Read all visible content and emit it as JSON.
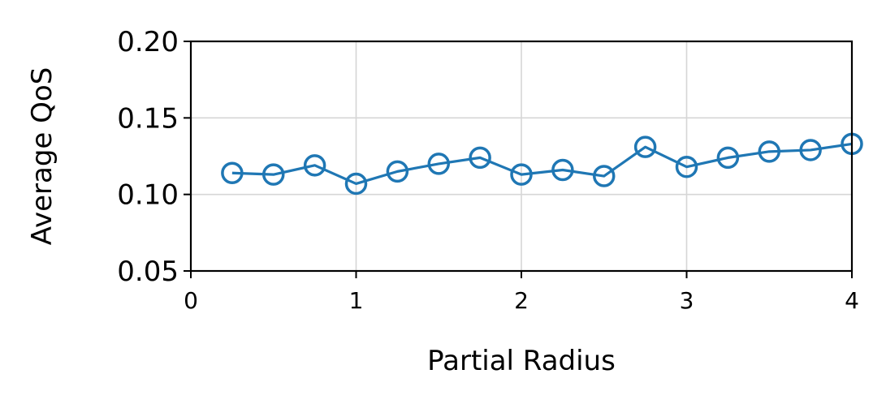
{
  "chart_data": {
    "type": "line",
    "xlabel": "Partial Radius",
    "ylabel": "Average QoS",
    "xlim": [
      0,
      4
    ],
    "ylim": [
      0.05,
      0.2
    ],
    "xticks": [
      0,
      1,
      2,
      3,
      4
    ],
    "xtick_labels": [
      "0",
      "1",
      "2",
      "3",
      "4"
    ],
    "yticks": [
      0.05,
      0.1,
      0.15,
      0.2
    ],
    "ytick_labels": [
      "0.05",
      "0.10",
      "0.15",
      "0.20"
    ],
    "grid": true,
    "marker": "open-circle",
    "color": "#1f77b4",
    "series": [
      {
        "x": [
          0.25,
          0.5,
          0.75,
          1.0,
          1.25,
          1.5,
          1.75,
          2.0,
          2.25,
          2.5,
          2.75,
          3.0,
          3.25,
          3.5,
          3.75,
          4.0
        ],
        "y": [
          0.114,
          0.113,
          0.119,
          0.107,
          0.115,
          0.12,
          0.124,
          0.113,
          0.116,
          0.112,
          0.131,
          0.118,
          0.124,
          0.128,
          0.129,
          0.133
        ]
      }
    ]
  }
}
